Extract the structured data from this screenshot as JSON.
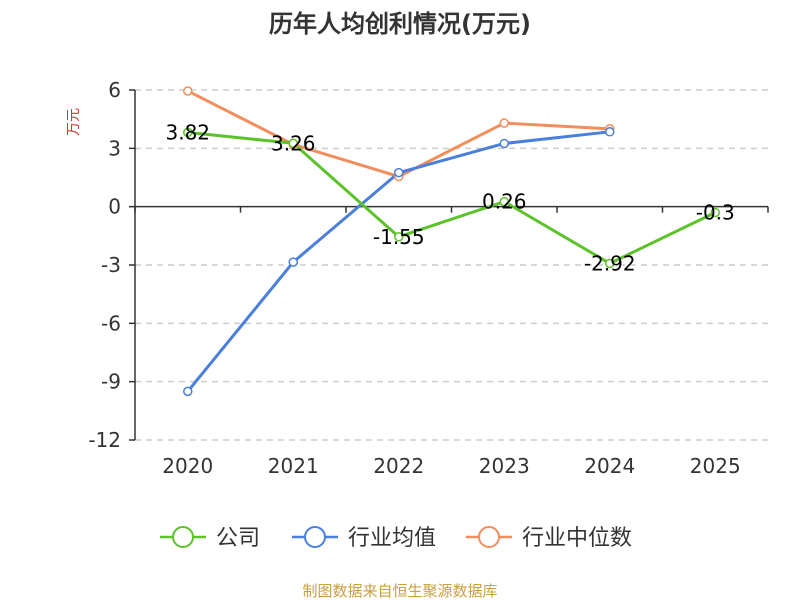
{
  "chart_data": {
    "type": "line",
    "title": "历年人均创利情况(万元)",
    "ylabel": "万元",
    "categories": [
      "2020",
      "2021",
      "2022",
      "2023",
      "2024",
      "2025"
    ],
    "yticks": [
      "6",
      "3",
      "0",
      "-3",
      "-6",
      "-9",
      "-12"
    ],
    "ylim": [
      -12,
      6
    ],
    "grid": true,
    "legend_position": "bottom",
    "series": [
      {
        "name": "公司",
        "color": "#5cc22a",
        "values": [
          3.82,
          3.26,
          -1.55,
          0.26,
          -2.92,
          -0.3
        ],
        "labels": [
          "3.82",
          "3.26",
          "-1.55",
          "0.26",
          "-2.92",
          "-0.3"
        ]
      },
      {
        "name": "行业均值",
        "color": "#4a7fdc",
        "values": [
          -9.5,
          -2.85,
          1.75,
          3.25,
          3.85,
          null
        ]
      },
      {
        "name": "行业中位数",
        "color": "#f28e5c",
        "values": [
          5.95,
          3.2,
          1.55,
          4.3,
          4.0,
          null
        ]
      }
    ]
  },
  "source": "制图数据来自恒生聚源数据库",
  "colors": {
    "ylabel": "#e03030",
    "source": "#c8a040",
    "grid": "#cccccc",
    "axis": "#333333"
  }
}
